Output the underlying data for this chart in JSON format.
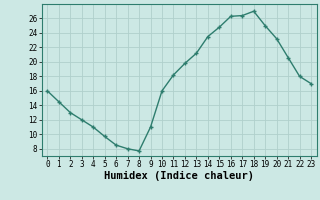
{
  "x": [
    0,
    1,
    2,
    3,
    4,
    5,
    6,
    7,
    8,
    9,
    10,
    11,
    12,
    13,
    14,
    15,
    16,
    17,
    18,
    19,
    20,
    21,
    22,
    23
  ],
  "y": [
    16,
    14.5,
    13,
    12,
    11,
    9.7,
    8.5,
    8,
    7.7,
    11,
    16,
    18.2,
    19.8,
    21.2,
    23.5,
    24.8,
    26.3,
    26.4,
    27,
    25,
    23.2,
    20.6,
    18,
    17
  ],
  "line_color": "#2e7d6e",
  "marker": "+",
  "marker_size": 3.5,
  "marker_lw": 1.0,
  "line_width": 1.0,
  "bg_color": "#cce8e4",
  "grid_color": "#b0d0cc",
  "xlabel": "Humidex (Indice chaleur)",
  "ylim": [
    7,
    28
  ],
  "xlim": [
    -0.5,
    23.5
  ],
  "yticks": [
    8,
    10,
    12,
    14,
    16,
    18,
    20,
    22,
    24,
    26
  ],
  "xticks": [
    0,
    1,
    2,
    3,
    4,
    5,
    6,
    7,
    8,
    9,
    10,
    11,
    12,
    13,
    14,
    15,
    16,
    17,
    18,
    19,
    20,
    21,
    22,
    23
  ],
  "tick_label_fontsize": 5.5,
  "xlabel_fontsize": 7.5,
  "xlabel_fontweight": "bold",
  "spine_color": "#2e7d6e"
}
